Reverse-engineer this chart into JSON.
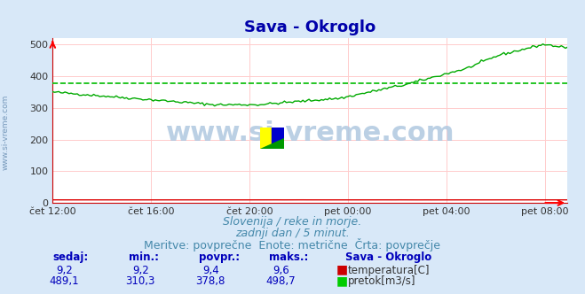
{
  "title": "Sava - Okroglo",
  "title_color": "#0000aa",
  "title_fontsize": 13,
  "bg_color": "#d8e8f8",
  "plot_bg_color": "#ffffff",
  "grid_color_h": "#ffcccc",
  "grid_color_v": "#ffcccc",
  "xlabel_color": "#444444",
  "ylabel_left_range": [
    0,
    520
  ],
  "ylabel_left_ticks": [
    0,
    100,
    200,
    300,
    400,
    500
  ],
  "avg_line_value": 378.8,
  "avg_line_color": "#00bb00",
  "flow_line_color": "#00aa00",
  "temp_line_color": "#dd0000",
  "watermark_text": "www.si-vreme.com",
  "watermark_color": "#b0c8e0",
  "watermark_alpha": 0.85,
  "subtitle_lines": [
    "Slovenija / reke in morje.",
    "zadnji dan / 5 minut.",
    "Meritve: povprečne  Enote: metrične  Črta: povprečje"
  ],
  "subtitle_color": "#4488aa",
  "subtitle_fontsize": 9,
  "xtick_labels": [
    "čet 12:00",
    "čet 16:00",
    "čet 20:00",
    "pet 00:00",
    "pet 04:00",
    "pet 08:00"
  ],
  "xtick_positions": [
    0,
    48,
    96,
    144,
    192,
    240
  ],
  "total_points": 252,
  "legend_station": "Sava - Okroglo",
  "legend_temp_label": "temperatura[C]",
  "legend_flow_label": "pretok[m3/s]",
  "table_headers": [
    "sedaj:",
    "min.:",
    "povpr.:",
    "maks.:"
  ],
  "table_temp": [
    "9,2",
    "9,2",
    "9,4",
    "9,6"
  ],
  "table_flow": [
    "489,1",
    "310,3",
    "378,8",
    "498,7"
  ],
  "table_color": "#0000bb",
  "rotated_label": "www.si-vreme.com",
  "rotated_label_color": "#7799bb"
}
